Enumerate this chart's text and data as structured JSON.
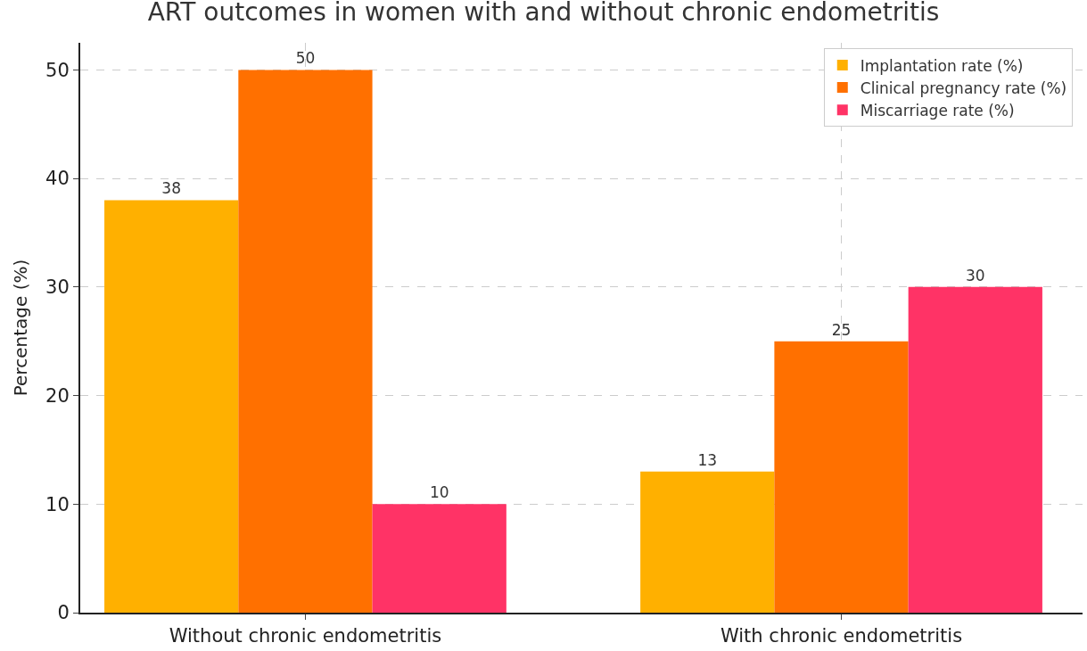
{
  "chart_data": {
    "type": "bar",
    "title": "ART outcomes in women with and without chronic endometritis",
    "ylabel": "Percentage (%)",
    "categories": [
      "Without chronic endometritis",
      "With chronic endometritis"
    ],
    "series": [
      {
        "name": "Implantation rate (%)",
        "color": "#ffb000",
        "values": [
          38,
          13
        ]
      },
      {
        "name": "Clinical pregnancy rate (%)",
        "color": "#ff7000",
        "values": [
          50,
          25
        ]
      },
      {
        "name": "Miscarriage rate (%)",
        "color": "#ff3366",
        "values": [
          10,
          30
        ]
      }
    ],
    "ylim": [
      0,
      52.5
    ],
    "yticks": [
      0,
      10,
      20,
      30,
      40,
      50
    ],
    "grid": true,
    "legend": "top right",
    "data_labels": true
  }
}
